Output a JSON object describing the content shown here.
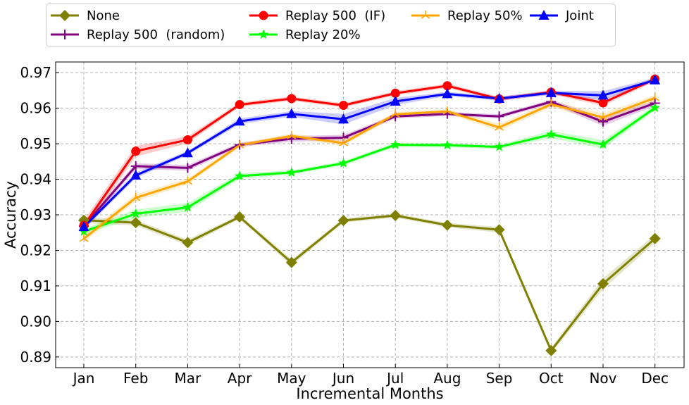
{
  "chart_data": {
    "type": "line",
    "title": "",
    "xlabel": "Incremental Months",
    "ylabel": "Accuracy",
    "categories": [
      "Jan",
      "Feb",
      "Mar",
      "Apr",
      "May",
      "Jun",
      "Jul",
      "Aug",
      "Sep",
      "Oct",
      "Nov",
      "Dec"
    ],
    "ylim": [
      0.887,
      0.973
    ],
    "yticks": [
      0.89,
      0.9,
      0.91,
      0.92,
      0.93,
      0.94,
      0.95,
      0.96,
      0.97
    ],
    "ytick_labels": [
      "0.89",
      "0.90",
      "0.91",
      "0.92",
      "0.93",
      "0.94",
      "0.95",
      "0.96",
      "0.97"
    ],
    "grid": true,
    "legend_placement": "top, outside plot",
    "series": [
      {
        "name": "None",
        "color": "#808000",
        "marker": "diamond",
        "values": [
          0.9285,
          0.9278,
          0.9222,
          0.9294,
          0.9166,
          0.9284,
          0.9298,
          0.9271,
          0.9258,
          0.8918,
          0.9106,
          0.9233
        ],
        "band": [
          0.0008,
          0.0008,
          0.0008,
          0.0006,
          0.0008,
          0.0006,
          0.0006,
          0.0006,
          0.0008,
          0.0008,
          0.0015,
          0.0012
        ]
      },
      {
        "name": "Replay 500  (random)",
        "color": "#800080",
        "marker": "plus",
        "values": [
          0.9268,
          0.9437,
          0.9432,
          0.9497,
          0.9514,
          0.9517,
          0.9577,
          0.9584,
          0.9577,
          0.9618,
          0.9562,
          0.9614
        ],
        "band": [
          0.001,
          0.0008,
          0.0008,
          0.0006,
          0.0008,
          0.0008,
          0.0006,
          0.0006,
          0.0006,
          0.0006,
          0.0012,
          0.0008
        ]
      },
      {
        "name": "Replay 500  (IF)",
        "color": "#ff0000",
        "marker": "circle",
        "values": [
          0.927,
          0.9479,
          0.9511,
          0.961,
          0.9627,
          0.9608,
          0.9642,
          0.9663,
          0.9626,
          0.9645,
          0.9615,
          0.9682
        ],
        "band": [
          0.0015,
          0.0015,
          0.001,
          0.0006,
          0.0006,
          0.0006,
          0.0006,
          0.0006,
          0.0006,
          0.0006,
          0.0008,
          0.0006
        ]
      },
      {
        "name": "Replay 20%",
        "color": "#00ff00",
        "marker": "star",
        "values": [
          0.9253,
          0.9303,
          0.9321,
          0.9409,
          0.9419,
          0.9445,
          0.9497,
          0.9496,
          0.9491,
          0.9526,
          0.9498,
          0.9601
        ],
        "band": [
          0.0008,
          0.0012,
          0.0012,
          0.0008,
          0.0006,
          0.0006,
          0.0006,
          0.0006,
          0.0006,
          0.001,
          0.0012,
          0.0008
        ]
      },
      {
        "name": "Replay 50%",
        "color": "#ffa500",
        "marker": "tri",
        "values": [
          0.9233,
          0.9348,
          0.9394,
          0.9496,
          0.9522,
          0.9502,
          0.9583,
          0.9591,
          0.9546,
          0.9611,
          0.9574,
          0.9629
        ],
        "band": [
          0.001,
          0.001,
          0.0008,
          0.0006,
          0.0006,
          0.0008,
          0.0006,
          0.0006,
          0.001,
          0.0008,
          0.0012,
          0.0008
        ]
      },
      {
        "name": "Joint",
        "color": "#0000ff",
        "marker": "triangle",
        "values": [
          0.9266,
          0.9411,
          0.9474,
          0.9563,
          0.9584,
          0.9569,
          0.9619,
          0.964,
          0.9627,
          0.9643,
          0.9636,
          0.9679
        ],
        "band": [
          0.0008,
          0.0008,
          0.0006,
          0.0008,
          0.0008,
          0.0015,
          0.001,
          0.0006,
          0.0006,
          0.0006,
          0.0012,
          0.0006
        ]
      }
    ]
  }
}
